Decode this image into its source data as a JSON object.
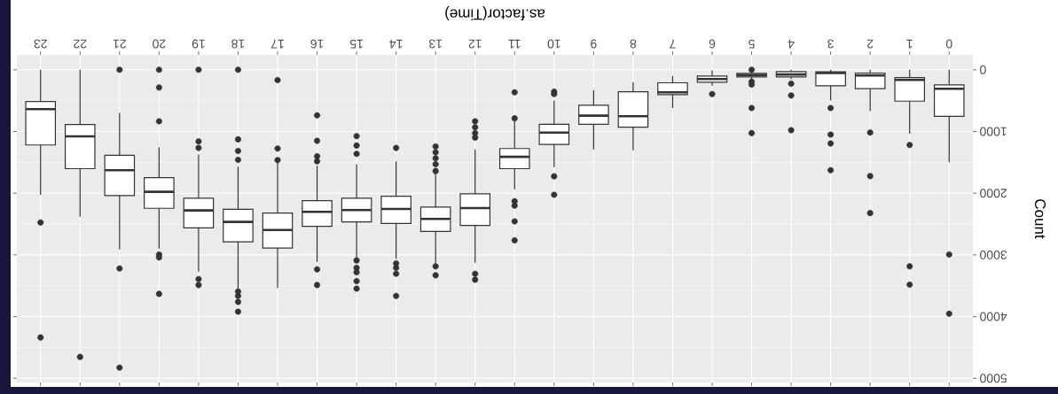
{
  "chart_data": {
    "type": "box",
    "xlabel": "as.factor(Time)",
    "ylabel": "Count",
    "categories": [
      "23",
      "22",
      "21",
      "20",
      "19",
      "18",
      "17",
      "16",
      "15",
      "14",
      "13",
      "12",
      "11",
      "10",
      "9",
      "8",
      "7",
      "6",
      "5",
      "4",
      "3",
      "2",
      "1",
      "0"
    ],
    "boxes": [
      {
        "low": 0,
        "q1": 513,
        "median": 638,
        "q3": 1219,
        "high": 2025,
        "outliers": [
          2476,
          4338
        ]
      },
      {
        "low": 0,
        "q1": 888,
        "median": 1080,
        "q3": 1603,
        "high": 2380,
        "outliers": [
          4654
        ]
      },
      {
        "low": 700,
        "q1": 1387,
        "median": 1627,
        "q3": 2039,
        "high": 2912,
        "outliers": [
          0,
          3220,
          4827
        ]
      },
      {
        "low": 1257,
        "q1": 1747,
        "median": 1977,
        "q3": 2245,
        "high": 2898,
        "outliers": [
          0,
          288,
          835,
          2994,
          3042,
          3632
        ]
      },
      {
        "low": 1372,
        "q1": 2082,
        "median": 2279,
        "q3": 2562,
        "high": 3272,
        "outliers": [
          0,
          1161,
          1267,
          3392,
          3488
        ]
      },
      {
        "low": 1569,
        "q1": 2260,
        "median": 2466,
        "q3": 2788,
        "high": 3546,
        "outliers": [
          0,
          1128,
          1315,
          1459,
          3594,
          3666,
          3762,
          3920
        ]
      },
      {
        "low": 1497,
        "q1": 2322,
        "median": 2596,
        "q3": 2888,
        "high": 3536,
        "outliers": [
          168,
          1276,
          1464
        ]
      },
      {
        "low": 1555,
        "q1": 2121,
        "median": 2303,
        "q3": 2538,
        "high": 3114,
        "outliers": [
          739,
          1152,
          1401,
          1483,
          3234,
          3488
        ]
      },
      {
        "low": 1531,
        "q1": 2082,
        "median": 2274,
        "q3": 2466,
        "high": 3042,
        "outliers": [
          1075,
          1228,
          1363,
          3090,
          3210,
          3282,
          3426,
          3546
        ]
      },
      {
        "low": 1483,
        "q1": 2049,
        "median": 2255,
        "q3": 2490,
        "high": 3066,
        "outliers": [
          1267,
          3138,
          3210,
          3306,
          3666
        ]
      },
      {
        "low": 1675,
        "q1": 2226,
        "median": 2418,
        "q3": 2620,
        "high": 3138,
        "outliers": [
          1243,
          1339,
          1435,
          1531,
          1641,
          3186,
          3330
        ]
      },
      {
        "low": 1291,
        "q1": 2010,
        "median": 2241,
        "q3": 2524,
        "high": 3128,
        "outliers": [
          835,
          931,
          1027,
          1099,
          3306,
          3402
        ]
      },
      {
        "low": 835,
        "q1": 1276,
        "median": 1411,
        "q3": 1603,
        "high": 1938,
        "outliers": [
          365,
          787,
          2130,
          2202,
          2457,
          2764
        ]
      },
      {
        "low": 499,
        "q1": 883,
        "median": 1017,
        "q3": 1209,
        "high": 1579,
        "outliers": [
          355,
          393,
          1727,
          2025
        ]
      },
      {
        "low": 331,
        "q1": 576,
        "median": 744,
        "q3": 883,
        "high": 1291
      },
      {
        "low": 202,
        "q1": 355,
        "median": 753,
        "q3": 931,
        "high": 1305
      },
      {
        "low": 101,
        "q1": 211,
        "median": 365,
        "q3": 403,
        "high": 619
      },
      {
        "low": 10,
        "q1": 101,
        "median": 149,
        "q3": 202,
        "high": 259,
        "outliers": [
          393
        ]
      },
      {
        "low": 29,
        "q1": 58,
        "median": 86,
        "q3": 115,
        "high": 154,
        "outliers": [
          0,
          192,
          240,
          619,
          1027
        ]
      },
      {
        "low": 0,
        "q1": 29,
        "median": 77,
        "q3": 115,
        "high": 154,
        "outliers": [
          226,
          417,
          979
        ]
      },
      {
        "low": 0,
        "q1": 34,
        "median": 53,
        "q3": 259,
        "high": 499,
        "outliers": [
          619,
          1051,
          1195,
          1627
        ]
      },
      {
        "low": 0,
        "q1": 53,
        "median": 91,
        "q3": 307,
        "high": 667,
        "outliers": [
          1017,
          1723,
          2322
        ]
      },
      {
        "low": 0,
        "q1": 125,
        "median": 163,
        "q3": 509,
        "high": 1036,
        "outliers": [
          1219,
          3186,
          3483
        ]
      },
      {
        "low": 0,
        "q1": 245,
        "median": 307,
        "q3": 753,
        "high": 1497,
        "outliers": [
          2994,
          3954
        ]
      }
    ],
    "ylim": [
      5068,
      -241
    ],
    "yticks": [
      0,
      1000,
      2000,
      3000,
      4000,
      5000
    ],
    "grid": true
  }
}
